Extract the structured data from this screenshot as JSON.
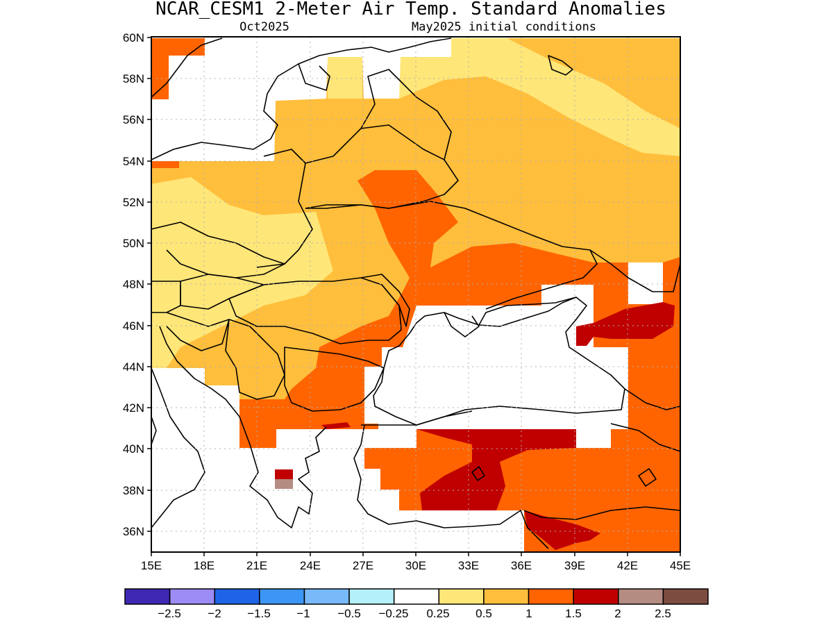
{
  "title": "NCAR_CESM1 2-Meter Air Temp. Standard Anomalies",
  "subtitle_left": "Oct2025",
  "subtitle_right": "May2025 initial conditions",
  "map": {
    "lat_labels": [
      "60N",
      "58N",
      "56N",
      "54N",
      "52N",
      "50N",
      "48N",
      "46N",
      "44N",
      "42N",
      "40N",
      "38N",
      "36N"
    ],
    "lon_labels": [
      "15E",
      "18E",
      "21E",
      "24E",
      "27E",
      "30E",
      "33E",
      "36E",
      "39E",
      "42E",
      "45E"
    ],
    "lat_range": [
      35,
      60
    ],
    "lon_range": [
      15,
      45
    ],
    "grid": true,
    "projection": "latitude-longitude"
  },
  "legend": {
    "colors": [
      "#3f28b4",
      "#9d8cf5",
      "#1f64e6",
      "#3c96f5",
      "#78b9f9",
      "#b4f0fa",
      "#ffffff",
      "#ffe678",
      "#ffbe3c",
      "#ff6400",
      "#c00000",
      "#b48c82",
      "#7d4c41"
    ],
    "labels": [
      "−2.5",
      "−2",
      "−1.5",
      "−1",
      "−0.5",
      "−0.25",
      "0.25",
      "0.5",
      "1",
      "1.5",
      "2",
      "2.5"
    ]
  },
  "chart_data": {
    "type": "heatmap",
    "variable": "2-Meter Air Temp. Standard Anomalies",
    "model": "NCAR_CESM1",
    "target": "Oct2025",
    "initial_conditions": "May2025",
    "bins": [
      -2.5,
      -2,
      -1.5,
      -1,
      -0.5,
      -0.25,
      0.25,
      0.5,
      1,
      1.5,
      2,
      2.5
    ],
    "regions": [
      {
        "area": "Black Sea",
        "anomaly_range": "-0.25 to 0.25"
      },
      {
        "area": "Poland / Baltic / western Russia",
        "anomaly_range": "0.5 to 1"
      },
      {
        "area": "Central Europe / Hungary",
        "anomaly_range": "0.25 to 0.5"
      },
      {
        "area": "Ukraine / southern Russia",
        "anomaly_range": "1 to 1.5"
      },
      {
        "area": "Turkey (north-central)",
        "anomaly_range": "1.5 to 2"
      },
      {
        "area": "Caucasus / Kalmykia",
        "anomaly_range": "1.5 to 2"
      },
      {
        "area": "Northern Russia (Moscow region north)",
        "anomaly_range": "0.25 to 0.5"
      }
    ]
  }
}
